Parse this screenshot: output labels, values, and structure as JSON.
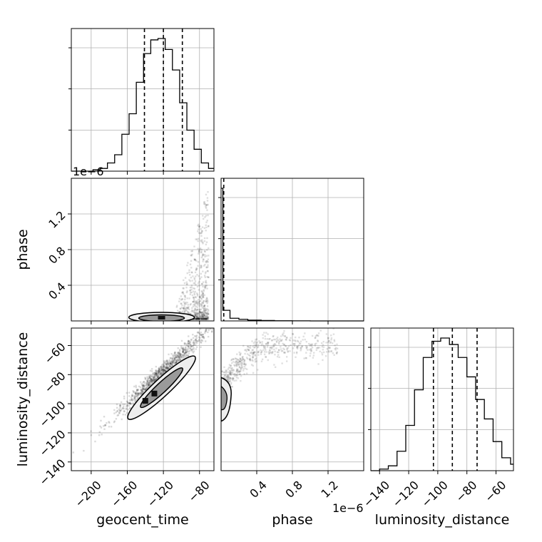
{
  "chart_data": {
    "type": "corner",
    "parameters": [
      "geocent_time",
      "phase",
      "luminosity_distance"
    ],
    "labels": {
      "geocent_time": "geocent_time",
      "phase": "phase",
      "luminosity_distance": "luminosity_distance"
    },
    "ranges": {
      "geocent_time": [
        -222,
        -64
      ],
      "phase": [
        0.0,
        1.6
      ],
      "luminosity_distance": [
        -146,
        -48
      ]
    },
    "ticks": {
      "geocent_time": [
        -200,
        -160,
        -120,
        -80
      ],
      "phase": [
        0.4,
        0.8,
        1.2
      ],
      "luminosity_distance": [
        -140,
        -120,
        -100,
        -80,
        -60
      ]
    },
    "tick_labels": {
      "geocent_time": [
        "−200",
        "−160",
        "−120",
        "−80"
      ],
      "phase": [
        "0.4",
        "0.8",
        "1.2"
      ],
      "luminosity_distance": [
        "−140",
        "−120",
        "−100",
        "−80",
        "−60"
      ]
    },
    "offset_label": "1e−6",
    "quantiles": {
      "geocent_time": [
        -141,
        -120,
        -99
      ],
      "phase": [
        0.03
      ],
      "luminosity_distance": [
        -103,
        -90,
        -73
      ]
    },
    "histograms": {
      "geocent_time": {
        "edges": [
          -222,
          -214,
          -206,
          -198,
          -190,
          -182,
          -174,
          -166,
          -158,
          -150,
          -142,
          -134,
          -126,
          -118,
          -110,
          -102,
          -94,
          -86,
          -78,
          -70,
          -62
        ],
        "counts": [
          0,
          0,
          0,
          1,
          2,
          6,
          12,
          27,
          42,
          65,
          86,
          96,
          97,
          89,
          74,
          50,
          30,
          16,
          6,
          2
        ]
      },
      "phase": {
        "edges": [
          0.0,
          0.02,
          0.1,
          0.2,
          0.3,
          0.45,
          0.6,
          0.8,
          1.0,
          1.6
        ],
        "counts": [
          100,
          8,
          2,
          1.2,
          0.6,
          0.3,
          0.15,
          0.05,
          0
        ]
      },
      "luminosity_distance": {
        "edges": [
          -146,
          -140,
          -134,
          -128,
          -122,
          -116,
          -110,
          -104,
          -98,
          -92,
          -86,
          -80,
          -74,
          -68,
          -62,
          -56,
          -50,
          -48
        ],
        "counts": [
          0,
          1,
          3,
          12,
          28,
          50,
          70,
          80,
          82,
          78,
          70,
          58,
          44,
          32,
          18,
          8,
          4
        ]
      }
    },
    "grid": true
  }
}
